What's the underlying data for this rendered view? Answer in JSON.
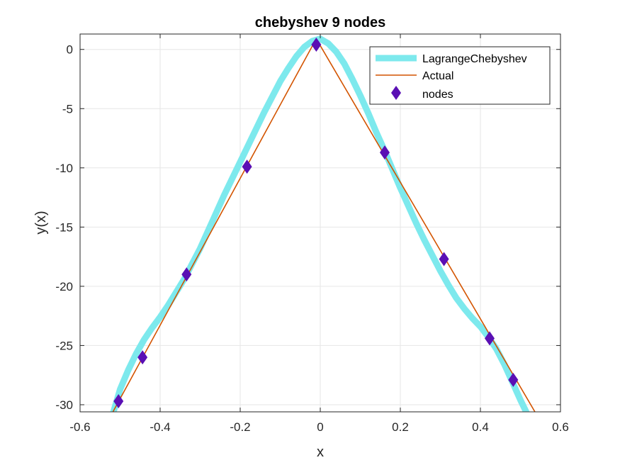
{
  "chart_data": {
    "type": "line",
    "title": "chebyshev 9 nodes",
    "xlabel": "x",
    "ylabel": "y(x)",
    "xlim": [
      -0.6,
      0.6
    ],
    "ylim": [
      -30.6,
      1.3
    ],
    "xticks": [
      -0.6,
      -0.4,
      -0.2,
      0,
      0.2,
      0.4,
      0.6
    ],
    "xtick_labels": [
      "-0.6",
      "-0.4",
      "-0.2",
      "0",
      "0.2",
      "0.4",
      "0.6"
    ],
    "yticks": [
      0,
      -5,
      -10,
      -15,
      -20,
      -25,
      -30
    ],
    "ytick_labels": [
      "0",
      "-5",
      "-10",
      "-15",
      "-20",
      "-25",
      "-30"
    ],
    "grid": true,
    "legend_position": "top-right",
    "series": [
      {
        "name": "LagrangeChebyshev",
        "color": "#7de9ed",
        "style": "thick-line",
        "x": [
          -0.55,
          -0.52,
          -0.5,
          -0.48,
          -0.46,
          -0.44,
          -0.42,
          -0.4,
          -0.38,
          -0.36,
          -0.34,
          -0.32,
          -0.3,
          -0.28,
          -0.26,
          -0.24,
          -0.22,
          -0.2,
          -0.18,
          -0.16,
          -0.14,
          -0.12,
          -0.1,
          -0.08,
          -0.06,
          -0.04,
          -0.02,
          0.0,
          0.02,
          0.04,
          0.06,
          0.08,
          0.1,
          0.12,
          0.14,
          0.16,
          0.18,
          0.2,
          0.22,
          0.24,
          0.26,
          0.28,
          0.3,
          0.32,
          0.34,
          0.36,
          0.38,
          0.4,
          0.42,
          0.44,
          0.46,
          0.48,
          0.5,
          0.52,
          0.55
        ],
        "y": [
          -34.5,
          -31.0,
          -28.7,
          -27.1,
          -25.7,
          -24.5,
          -23.5,
          -22.6,
          -21.6,
          -20.5,
          -19.4,
          -18.1,
          -16.8,
          -15.3,
          -13.8,
          -12.3,
          -10.9,
          -9.5,
          -8.1,
          -6.7,
          -5.3,
          -4.0,
          -2.7,
          -1.6,
          -0.6,
          0.2,
          0.7,
          0.9,
          0.5,
          -0.2,
          -1.2,
          -2.5,
          -3.9,
          -5.4,
          -7.0,
          -8.5,
          -10.1,
          -11.7,
          -13.2,
          -14.7,
          -16.1,
          -17.4,
          -18.7,
          -19.9,
          -21.0,
          -21.9,
          -22.7,
          -23.4,
          -24.3,
          -25.3,
          -26.6,
          -28.1,
          -29.6,
          -31.0,
          -34.0
        ]
      },
      {
        "name": "Actual",
        "color": "#d35400",
        "style": "line",
        "x": [
          -0.55,
          -0.01,
          0.55
        ],
        "y": [
          -32.6,
          0.9,
          -31.4
        ]
      },
      {
        "name": "nodes",
        "color": "#5a0fb4",
        "style": "diamond-markers",
        "x": [
          -0.504,
          -0.444,
          -0.334,
          -0.183,
          -0.01,
          0.161,
          0.309,
          0.423,
          0.482
        ],
        "y": [
          -29.7,
          -26.0,
          -19.0,
          -9.9,
          0.4,
          -8.7,
          -17.7,
          -24.4,
          -27.9
        ]
      }
    ]
  }
}
